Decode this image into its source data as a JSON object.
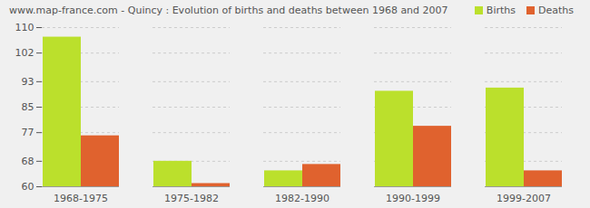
{
  "chart_data": {
    "type": "bar",
    "title": "www.map-france.com - Quincy : Evolution of births and deaths between 1968 and 2007",
    "categories": [
      "1968-1975",
      "1975-1982",
      "1982-1990",
      "1990-1999",
      "1999-2007"
    ],
    "series": [
      {
        "name": "Births",
        "color": "#bbe02c",
        "values": [
          107,
          68,
          65,
          90,
          91
        ]
      },
      {
        "name": "Deaths",
        "color": "#e0622e",
        "values": [
          76,
          61,
          67,
          79,
          65
        ]
      }
    ],
    "ylim": [
      60,
      110
    ],
    "yticks": [
      60,
      68,
      77,
      85,
      93,
      102,
      110
    ],
    "grid": true,
    "legend": "top-right"
  }
}
